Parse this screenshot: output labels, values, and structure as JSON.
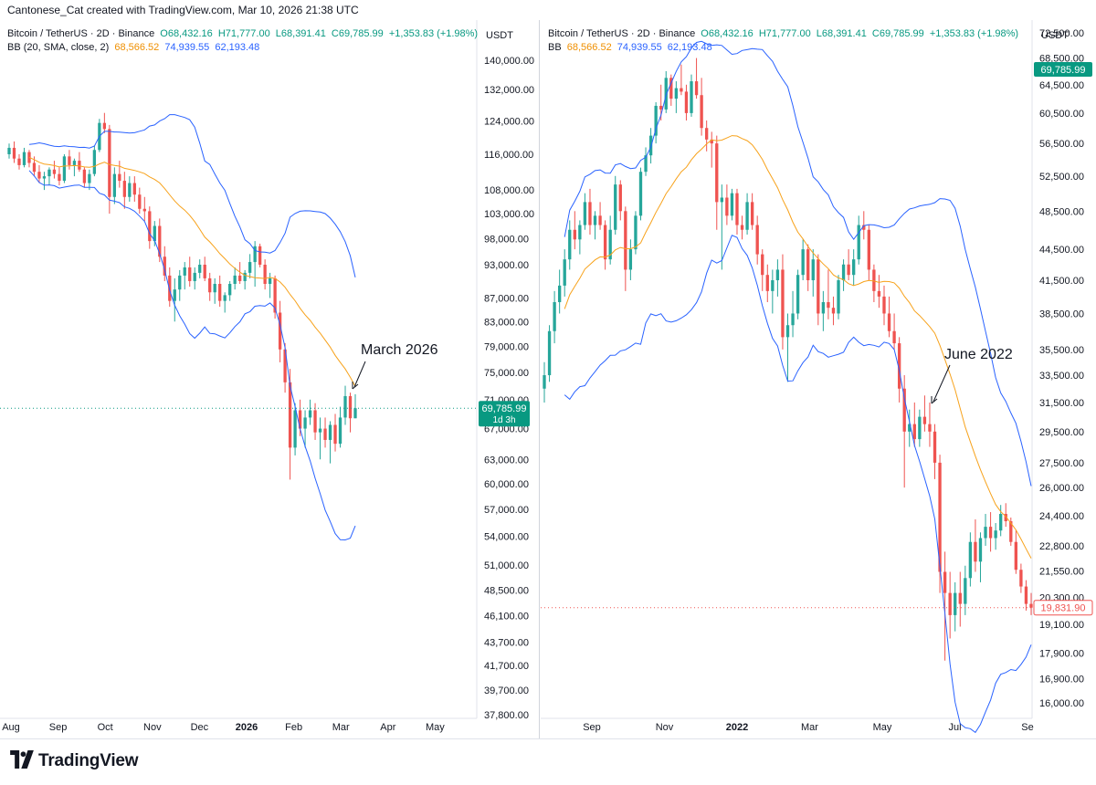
{
  "header": {
    "text": "Cantonese_Cat created with TradingView.com, Mar 10, 2026 21:38 UTC"
  },
  "footer": {
    "brand": "TradingView"
  },
  "colors": {
    "up": "#26a69a",
    "down": "#ef5350",
    "bb_upper": "#2962ff",
    "bb_basis": "#f7a21b",
    "price_badge": "#089981",
    "last_price_red": "#ef5350",
    "axis_text": "#131722"
  },
  "chart_data": [
    {
      "type": "candlestick",
      "symbol": "Bitcoin / TetherUS · 2D · Binance",
      "legend": {
        "symbol": "Bitcoin / TetherUS · 2D · Binance",
        "open": "O68,432.16",
        "high": "H71,777.00",
        "low": "L68,391.41",
        "close": "C69,785.99",
        "change": "+1,353.83 (+1.98%)",
        "indicator": "BB (20, SMA, close, 2)",
        "bb_basis": "68,566.52",
        "bb_upper": "74,939.55",
        "bb_lower": "62,193.48"
      },
      "currency": "USDT",
      "y_ticks": [
        "140,000.00",
        "132,000.00",
        "124,000.00",
        "116,000.00",
        "108,000.00",
        "103,000.00",
        "98,000.00",
        "93,000.00",
        "87,000.00",
        "83,000.00",
        "79,000.00",
        "75,000.00",
        "71,000.00",
        "67,000.00",
        "63,000.00",
        "60,000.00",
        "57,000.00",
        "54,000.00",
        "51,000.00",
        "48,500.00",
        "46,100.00",
        "43,700.00",
        "41,700.00",
        "39,700.00",
        "37,800.00"
      ],
      "x_ticks": [
        "Aug",
        "Sep",
        "Oct",
        "Nov",
        "Dec",
        "2026",
        "Feb",
        "Mar",
        "Apr",
        "May"
      ],
      "last_price_label": "69,785.99",
      "countdown_label": "1d 3h",
      "annotation": "March 2026",
      "candles": [
        [
          116000,
          118500,
          115000,
          117500
        ],
        [
          117500,
          119000,
          114000,
          115000
        ],
        [
          115000,
          116000,
          112500,
          113500
        ],
        [
          113500,
          117500,
          113000,
          116500
        ],
        [
          116500,
          117000,
          113000,
          114000
        ],
        [
          114000,
          115500,
          111000,
          112000
        ],
        [
          112000,
          113500,
          109500,
          110500
        ],
        [
          110500,
          112000,
          108000,
          111000
        ],
        [
          111000,
          113000,
          109000,
          112500
        ],
        [
          112500,
          114500,
          110500,
          111500
        ],
        [
          111500,
          113000,
          109000,
          110000
        ],
        [
          110000,
          116000,
          109500,
          115500
        ],
        [
          115500,
          117000,
          112500,
          113500
        ],
        [
          113500,
          115000,
          111000,
          114500
        ],
        [
          114500,
          116500,
          112000,
          112500
        ],
        [
          112500,
          113000,
          108500,
          109500
        ],
        [
          109500,
          112500,
          108000,
          111500
        ],
        [
          111500,
          118000,
          111000,
          117000
        ],
        [
          117000,
          124500,
          116500,
          123500
        ],
        [
          123500,
          126000,
          121000,
          122000
        ],
        [
          122000,
          123000,
          103000,
          106500
        ],
        [
          106500,
          113000,
          105000,
          111500
        ],
        [
          111500,
          114500,
          108500,
          110000
        ],
        [
          110000,
          112000,
          104000,
          106500
        ],
        [
          106500,
          111000,
          105500,
          109500
        ],
        [
          109500,
          111000,
          105500,
          107000
        ],
        [
          107000,
          108500,
          103000,
          104000
        ],
        [
          104000,
          106500,
          101500,
          103500
        ],
        [
          103500,
          104500,
          96000,
          97500
        ],
        [
          97500,
          101500,
          96500,
          100500
        ],
        [
          100500,
          102000,
          93500,
          94500
        ],
        [
          94500,
          96500,
          90000,
          91000
        ],
        [
          91000,
          92500,
          85500,
          86500
        ],
        [
          86500,
          90500,
          83000,
          88500
        ],
        [
          88500,
          92000,
          86500,
          91000
        ],
        [
          91000,
          93500,
          88500,
          92500
        ],
        [
          92500,
          94500,
          89000,
          90000
        ],
        [
          90000,
          92500,
          88500,
          91500
        ],
        [
          91500,
          94000,
          90500,
          93000
        ],
        [
          93000,
          94500,
          90000,
          90500
        ],
        [
          90500,
          91500,
          86500,
          88000
        ],
        [
          88000,
          90500,
          86000,
          89500
        ],
        [
          89500,
          91000,
          85500,
          86500
        ],
        [
          86500,
          88000,
          84500,
          87500
        ],
        [
          87500,
          90000,
          86500,
          89500
        ],
        [
          89500,
          92500,
          88500,
          91000
        ],
        [
          91000,
          93500,
          89500,
          90000
        ],
        [
          90000,
          92000,
          88500,
          91500
        ],
        [
          91500,
          95000,
          90500,
          93500
        ],
        [
          93500,
          97500,
          89000,
          96500
        ],
        [
          96500,
          97000,
          92500,
          93000
        ],
        [
          93000,
          94000,
          88500,
          89500
        ],
        [
          89500,
          91500,
          87000,
          90500
        ],
        [
          90500,
          91000,
          83500,
          84500
        ],
        [
          84500,
          86500,
          76500,
          78500
        ],
        [
          78500,
          79500,
          72000,
          73500
        ],
        [
          73500,
          75500,
          60500,
          64500
        ],
        [
          64500,
          70500,
          63500,
          69500
        ],
        [
          69500,
          71000,
          66000,
          67000
        ],
        [
          67000,
          69500,
          64500,
          68500
        ],
        [
          68500,
          71000,
          67500,
          69500
        ],
        [
          69500,
          70500,
          65500,
          66500
        ],
        [
          66500,
          68500,
          63000,
          67000
        ],
        [
          67000,
          68500,
          64500,
          65500
        ],
        [
          65500,
          68000,
          62500,
          67500
        ],
        [
          67500,
          69000,
          64000,
          65000
        ],
        [
          65000,
          70000,
          64500,
          68500
        ],
        [
          68500,
          73000,
          67500,
          71500
        ],
        [
          71500,
          72000,
          66500,
          68400
        ],
        [
          68400,
          71777,
          68391,
          69786
        ]
      ]
    },
    {
      "type": "candlestick",
      "symbol": "Bitcoin / TetherUS · 2D · Binance",
      "legend": {
        "symbol": "Bitcoin / TetherUS · 2D · Binance",
        "open": "O68,432.16",
        "high": "H71,777.00",
        "low": "L68,391.41",
        "close": "C69,785.99",
        "change": "+1,353.83 (+1.98%)",
        "indicator": "BB",
        "bb_basis": "68,566.52",
        "bb_upper": "74,939.55",
        "bb_lower": "62,193.48"
      },
      "currency": "USDT",
      "y_ticks": [
        "72,500.00",
        "68,500.00",
        "64,500.00",
        "60,500.00",
        "56,500.00",
        "52,500.00",
        "48,500.00",
        "44,500.00",
        "41,500.00",
        "38,500.00",
        "35,500.00",
        "33,500.00",
        "31,500.00",
        "29,500.00",
        "27,500.00",
        "26,000.00",
        "24,400.00",
        "22,800.00",
        "21,550.00",
        "20,300.00",
        "19,100.00",
        "17,900.00",
        "16,900.00",
        "16,000.00"
      ],
      "x_ticks": [
        "Sep",
        "Nov",
        "2022",
        "Mar",
        "May",
        "Jul",
        "Se"
      ],
      "last_price_label": "69,785.99",
      "last_visible_label": "19,831.90",
      "annotation": "June 2022",
      "candles": [
        [
          32500,
          34500,
          31500,
          33500
        ],
        [
          33500,
          37500,
          33000,
          37000
        ],
        [
          37000,
          40500,
          36000,
          39500
        ],
        [
          39500,
          42500,
          38500,
          41000
        ],
        [
          41000,
          44500,
          40000,
          43500
        ],
        [
          43500,
          47500,
          42500,
          46500
        ],
        [
          46500,
          48500,
          44500,
          45500
        ],
        [
          45500,
          47500,
          44000,
          47000
        ],
        [
          47000,
          50500,
          46500,
          49500
        ],
        [
          49500,
          51000,
          46000,
          47000
        ],
        [
          47000,
          48500,
          45500,
          48000
        ],
        [
          48000,
          49500,
          46500,
          47000
        ],
        [
          47000,
          47500,
          42500,
          43500
        ],
        [
          43500,
          48000,
          43000,
          46500
        ],
        [
          46500,
          52500,
          46000,
          51500
        ],
        [
          51500,
          52000,
          47500,
          48500
        ],
        [
          48500,
          49000,
          40500,
          42500
        ],
        [
          42500,
          45500,
          41500,
          44500
        ],
        [
          44500,
          48500,
          44000,
          48000
        ],
        [
          48000,
          53500,
          47500,
          53000
        ],
        [
          53000,
          56000,
          52500,
          55000
        ],
        [
          55000,
          58500,
          54000,
          57500
        ],
        [
          57500,
          62000,
          56500,
          61500
        ],
        [
          61500,
          64500,
          59500,
          61000
        ],
        [
          61000,
          66500,
          60500,
          65500
        ],
        [
          65500,
          66000,
          61500,
          62500
        ],
        [
          62500,
          65000,
          60500,
          64000
        ],
        [
          64000,
          67500,
          63000,
          63500
        ],
        [
          63500,
          64500,
          59500,
          60500
        ],
        [
          60500,
          66000,
          60000,
          65000
        ],
        [
          65000,
          68500,
          62500,
          63000
        ],
        [
          63000,
          65500,
          57500,
          58500
        ],
        [
          58500,
          59500,
          55500,
          57000
        ],
        [
          57000,
          58000,
          53500,
          56500
        ],
        [
          56500,
          57500,
          46500,
          49500
        ],
        [
          49500,
          51500,
          42500,
          50000
        ],
        [
          50000,
          51500,
          47000,
          48000
        ],
        [
          48000,
          51000,
          47500,
          50500
        ],
        [
          50500,
          51000,
          46000,
          47000
        ],
        [
          47000,
          48000,
          45500,
          46500
        ],
        [
          46500,
          50500,
          46000,
          49500
        ],
        [
          49500,
          50500,
          46500,
          47000
        ],
        [
          47000,
          48000,
          43000,
          44000
        ],
        [
          44000,
          44500,
          40500,
          42000
        ],
        [
          42000,
          43000,
          39500,
          40500
        ],
        [
          40500,
          42500,
          38500,
          41500
        ],
        [
          41500,
          43500,
          40000,
          42500
        ],
        [
          42500,
          44000,
          35500,
          36500
        ],
        [
          36500,
          38500,
          33000,
          37500
        ],
        [
          37500,
          40500,
          36500,
          38500
        ],
        [
          38500,
          42500,
          38000,
          42000
        ],
        [
          42000,
          45500,
          41500,
          44500
        ],
        [
          44500,
          45000,
          40500,
          41500
        ],
        [
          41500,
          44500,
          40000,
          43500
        ],
        [
          43500,
          44000,
          37500,
          38500
        ],
        [
          38500,
          40500,
          37000,
          39500
        ],
        [
          39500,
          42500,
          38000,
          39000
        ],
        [
          39000,
          40000,
          37500,
          38500
        ],
        [
          38500,
          42000,
          38000,
          41500
        ],
        [
          41500,
          43500,
          40500,
          43000
        ],
        [
          43000,
          44500,
          41500,
          42000
        ],
        [
          42000,
          44500,
          41000,
          43500
        ],
        [
          43500,
          48000,
          43000,
          47000
        ],
        [
          47000,
          48500,
          45500,
          46500
        ],
        [
          46500,
          47000,
          41500,
          42500
        ],
        [
          42500,
          43000,
          39500,
          40500
        ],
        [
          40500,
          42000,
          39000,
          40000
        ],
        [
          40000,
          41000,
          37500,
          38500
        ],
        [
          38500,
          40000,
          36500,
          37000
        ],
        [
          37000,
          38500,
          35500,
          36000
        ],
        [
          36000,
          36500,
          31500,
          32500
        ],
        [
          32500,
          33500,
          26000,
          29500
        ],
        [
          29500,
          31000,
          28500,
          30000
        ],
        [
          30000,
          31500,
          28500,
          29000
        ],
        [
          29000,
          31000,
          28500,
          30500
        ],
        [
          30500,
          32000,
          29500,
          30000
        ],
        [
          30000,
          31500,
          28500,
          29500
        ],
        [
          29500,
          30000,
          26500,
          27500
        ],
        [
          27500,
          28000,
          20500,
          21500
        ],
        [
          21500,
          22500,
          17600,
          20500
        ],
        [
          20500,
          21500,
          18500,
          19500
        ],
        [
          19500,
          21000,
          18800,
          20500
        ],
        [
          20500,
          21500,
          19000,
          20000
        ],
        [
          20000,
          21800,
          19500,
          21200
        ],
        [
          21200,
          23500,
          20800,
          23000
        ],
        [
          23000,
          24200,
          21500,
          22000
        ],
        [
          22000,
          23500,
          21000,
          23200
        ],
        [
          23200,
          24500,
          22800,
          23800
        ],
        [
          23800,
          24600,
          22500,
          23200
        ],
        [
          23200,
          24000,
          22600,
          23600
        ],
        [
          23600,
          25000,
          23300,
          24500
        ],
        [
          24500,
          25100,
          23800,
          24100
        ],
        [
          24100,
          24300,
          22800,
          23000
        ],
        [
          23000,
          23600,
          21400,
          21600
        ],
        [
          21600,
          21900,
          20500,
          20800
        ],
        [
          20800,
          21100,
          19700,
          20000
        ],
        [
          20000,
          20500,
          19500,
          19832
        ]
      ]
    }
  ]
}
